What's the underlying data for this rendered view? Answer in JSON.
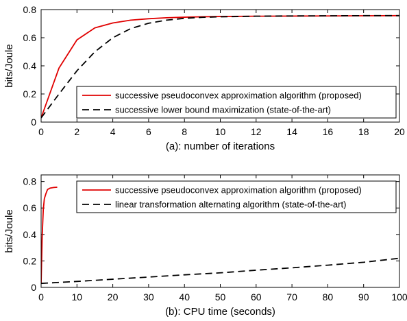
{
  "chart_data": [
    {
      "type": "line",
      "xlabel": "(a): number of iterations",
      "ylabel": "bits/Joule",
      "xlim": [
        0,
        20
      ],
      "ylim": [
        0,
        0.8
      ],
      "xticks": [
        0,
        2,
        4,
        6,
        8,
        10,
        12,
        14,
        16,
        18,
        20
      ],
      "yticks": [
        0,
        0.2,
        0.4,
        0.6,
        0.8
      ],
      "xtick_labels": [
        "0",
        "2",
        "4",
        "6",
        "8",
        "10",
        "12",
        "14",
        "16",
        "18",
        "20"
      ],
      "ytick_labels": [
        "0",
        "0.2",
        "0.4",
        "0.6",
        "0.8"
      ],
      "grid": false,
      "legend_position": "bottom-right",
      "series": [
        {
          "name": "successive pseudoconvex approximation algorithm (proposed)",
          "color": "#e00000",
          "style": "solid",
          "x": [
            0,
            1,
            2,
            3,
            4,
            5,
            6,
            7,
            8,
            9,
            10,
            12,
            14,
            16,
            18,
            20
          ],
          "y": [
            0.03,
            0.385,
            0.585,
            0.67,
            0.705,
            0.725,
            0.735,
            0.742,
            0.746,
            0.749,
            0.751,
            0.753,
            0.754,
            0.755,
            0.756,
            0.757
          ]
        },
        {
          "name": "successive lower bound maximization (state-of-the-art)",
          "color": "#000000",
          "style": "dashed",
          "x": [
            0,
            1,
            2,
            3,
            4,
            5,
            6,
            7,
            8,
            9,
            10,
            12,
            14,
            16,
            18,
            20
          ],
          "y": [
            0.03,
            0.2,
            0.365,
            0.5,
            0.6,
            0.665,
            0.703,
            0.725,
            0.738,
            0.745,
            0.749,
            0.753,
            0.755,
            0.756,
            0.757,
            0.757
          ]
        }
      ]
    },
    {
      "type": "line",
      "xlabel": "(b): CPU time (seconds)",
      "ylabel": "bits/Joule",
      "xlim": [
        0,
        100
      ],
      "ylim": [
        0,
        0.85
      ],
      "xticks": [
        0,
        10,
        20,
        30,
        40,
        50,
        60,
        70,
        80,
        90,
        100
      ],
      "yticks": [
        0,
        0.2,
        0.4,
        0.6,
        0.8
      ],
      "xtick_labels": [
        "0",
        "10",
        "20",
        "30",
        "40",
        "50",
        "60",
        "70",
        "80",
        "90",
        "100"
      ],
      "ytick_labels": [
        "0",
        "0.2",
        "0.4",
        "0.6",
        "0.8"
      ],
      "grid": false,
      "legend_position": "top-right",
      "series": [
        {
          "name": "successive pseudoconvex approximation algorithm (proposed)",
          "color": "#e00000",
          "style": "solid",
          "x": [
            0,
            0.3,
            0.6,
            0.9,
            1.3,
            1.8,
            2.5,
            3.5,
            4.5
          ],
          "y": [
            0.03,
            0.385,
            0.585,
            0.67,
            0.705,
            0.74,
            0.75,
            0.755,
            0.757
          ]
        },
        {
          "name": "linear transformation alternating algorithm (state-of-the-art)",
          "color": "#000000",
          "style": "dashed",
          "x": [
            0,
            10,
            20,
            30,
            40,
            50,
            60,
            70,
            80,
            90,
            100
          ],
          "y": [
            0.03,
            0.045,
            0.062,
            0.078,
            0.095,
            0.11,
            0.13,
            0.148,
            0.168,
            0.19,
            0.22
          ]
        }
      ]
    }
  ]
}
